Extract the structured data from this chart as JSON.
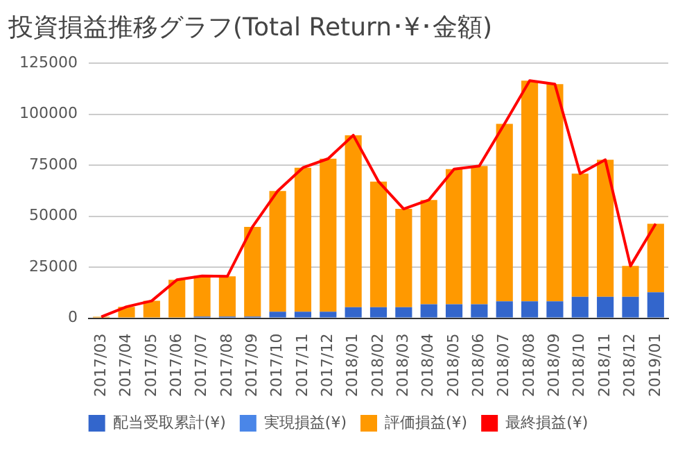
{
  "chart_data": {
    "type": "bar",
    "title": "投資損益推移グラフ(Total Return･¥･金額)",
    "stacked": true,
    "categories": [
      "2017/03",
      "2017/04",
      "2017/05",
      "2017/06",
      "2017/07",
      "2017/08",
      "2017/09",
      "2017/10",
      "2017/11",
      "2017/12",
      "2018/01",
      "2018/02",
      "2018/03",
      "2018/04",
      "2018/05",
      "2018/06",
      "2018/07",
      "2018/08",
      "2018/09",
      "2018/10",
      "2018/11",
      "2018/12",
      "2019/01"
    ],
    "series": [
      {
        "name": "配当受取累計(¥)",
        "color": "#3366cc",
        "values": [
          0,
          0,
          0,
          0,
          800,
          800,
          800,
          3200,
          3200,
          3200,
          5400,
          5400,
          5400,
          6800,
          6800,
          6800,
          8300,
          8300,
          8300,
          10500,
          10500,
          10500,
          12700
        ]
      },
      {
        "name": "実現損益(¥)",
        "color": "#4a86e8",
        "values": [
          0,
          0,
          0,
          0,
          0,
          0,
          0,
          0,
          0,
          0,
          0,
          0,
          0,
          0,
          0,
          0,
          0,
          0,
          0,
          0,
          0,
          0,
          0
        ]
      },
      {
        "name": "評価損益(¥)",
        "color": "#ff9900",
        "values": [
          700,
          5600,
          8500,
          18800,
          19900,
          19700,
          44000,
          59200,
          70600,
          75000,
          84300,
          61600,
          48200,
          51200,
          66300,
          67800,
          87000,
          108200,
          106500,
          60400,
          67200,
          15100,
          33600
        ]
      },
      {
        "name": "最終損益(¥)",
        "type": "line",
        "color": "#ff0000",
        "values": [
          700,
          5600,
          8500,
          18800,
          20700,
          20500,
          44800,
          62400,
          73800,
          78200,
          89700,
          67000,
          53600,
          58000,
          73100,
          74600,
          95300,
          116500,
          114800,
          70900,
          77700,
          25600,
          46300
        ]
      }
    ],
    "ylim": [
      0,
      125000
    ],
    "yticks": [
      0,
      25000,
      50000,
      75000,
      100000,
      125000
    ],
    "grid": "y",
    "legend": "bottom",
    "marker": "none"
  }
}
